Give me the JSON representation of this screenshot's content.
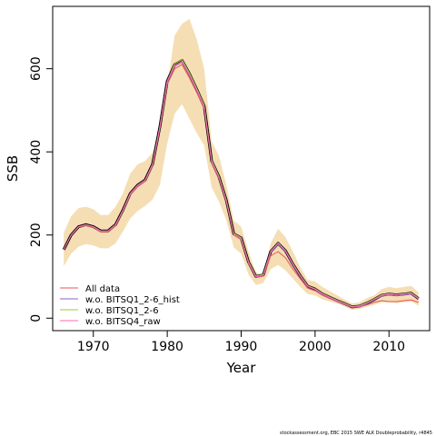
{
  "chart_data": {
    "type": "line",
    "xlabel": "Year",
    "ylabel": "SSB",
    "xlim": [
      1964.5,
      2015.5
    ],
    "ylim": [
      -30,
      750
    ],
    "x_ticks": [
      1970,
      1980,
      1990,
      2000,
      2010
    ],
    "y_ticks": [
      0,
      200,
      400,
      600
    ],
    "legend_position": "bottom-left",
    "x": [
      1966,
      1967,
      1968,
      1969,
      1970,
      1971,
      1972,
      1973,
      1974,
      1975,
      1976,
      1977,
      1978,
      1979,
      1980,
      1981,
      1982,
      1983,
      1984,
      1985,
      1986,
      1987,
      1988,
      1989,
      1990,
      1991,
      1992,
      1993,
      1994,
      1995,
      1996,
      1997,
      1998,
      1999,
      2000,
      2001,
      2002,
      2003,
      2004,
      2005,
      2006,
      2007,
      2008,
      2009,
      2010,
      2011,
      2012,
      2013,
      2014
    ],
    "band": {
      "color": "#f5deb3",
      "lower": [
        125,
        155,
        172,
        178,
        175,
        168,
        168,
        180,
        208,
        240,
        258,
        270,
        285,
        320,
        420,
        492,
        515,
        480,
        445,
        415,
        315,
        280,
        235,
        170,
        155,
        105,
        80,
        85,
        118,
        128,
        115,
        95,
        75,
        58,
        55,
        45,
        40,
        35,
        28,
        20,
        22,
        28,
        32,
        38,
        38,
        36,
        38,
        40,
        30
      ],
      "upper": [
        205,
        245,
        265,
        268,
        262,
        248,
        248,
        268,
        300,
        348,
        370,
        378,
        398,
        440,
        560,
        680,
        708,
        720,
        670,
        600,
        425,
        390,
        320,
        235,
        220,
        160,
        110,
        105,
        180,
        215,
        195,
        160,
        122,
        92,
        88,
        75,
        65,
        55,
        45,
        35,
        38,
        48,
        55,
        70,
        75,
        72,
        75,
        78,
        62
      ]
    },
    "series": [
      {
        "name": "",
        "color": "#000000",
        "values": [
          165,
          200,
          220,
          225,
          220,
          210,
          210,
          225,
          260,
          300,
          320,
          332,
          370,
          460,
          570,
          610,
          620,
          588,
          550,
          510,
          378,
          340,
          283,
          203,
          193,
          135,
          100,
          104,
          160,
          180,
          162,
          130,
          102,
          77,
          70,
          58,
          50,
          42,
          35,
          27,
          29,
          36,
          45,
          55,
          58,
          56,
          58,
          60,
          47
        ]
      },
      {
        "name": "All data",
        "color": "#e6555d",
        "values": [
          165,
          199,
          219,
          223,
          218,
          207,
          208,
          222,
          257,
          296,
          316,
          329,
          366,
          455,
          562,
          600,
          610,
          578,
          542,
          503,
          373,
          336,
          279,
          200,
          189,
          132,
          98,
          101,
          150,
          160,
          145,
          118,
          95,
          72,
          66,
          55,
          47,
          40,
          33,
          26,
          27,
          32,
          38,
          42,
          40,
          40,
          42,
          44,
          38
        ]
      },
      {
        "name": "w.o. BITSQ1_2-6_hist",
        "color": "#8b5fbf",
        "values": [
          165,
          200,
          220,
          224,
          219,
          209,
          209,
          224,
          259,
          298,
          318,
          331,
          368,
          458,
          566,
          606,
          616,
          584,
          547,
          507,
          376,
          338,
          281,
          202,
          191,
          134,
          99,
          103,
          158,
          178,
          160,
          128,
          100,
          76,
          69,
          57,
          49,
          41,
          34,
          27,
          28,
          35,
          44,
          53,
          56,
          54,
          56,
          58,
          46
        ]
      },
      {
        "name": "w.o. BITSQ1_2-6",
        "color": "#9acd32",
        "values": [
          165,
          200,
          220,
          225,
          220,
          210,
          210,
          225,
          260,
          300,
          320,
          332,
          370,
          460,
          570,
          612,
          622,
          590,
          552,
          512,
          380,
          341,
          284,
          204,
          194,
          136,
          101,
          105,
          161,
          181,
          163,
          131,
          103,
          78,
          71,
          59,
          51,
          43,
          36,
          28,
          30,
          37,
          46,
          56,
          59,
          57,
          59,
          61,
          48
        ]
      },
      {
        "name": "w.o. BITSQ4_raw",
        "color": "#ff69b4",
        "values": [
          165,
          200,
          220,
          225,
          220,
          210,
          210,
          225,
          260,
          300,
          320,
          332,
          370,
          460,
          570,
          608,
          618,
          586,
          549,
          509,
          377,
          339,
          282,
          202,
          192,
          134,
          100,
          104,
          160,
          180,
          162,
          130,
          102,
          77,
          70,
          58,
          50,
          42,
          35,
          27,
          29,
          36,
          45,
          55,
          58,
          56,
          58,
          60,
          47
        ]
      }
    ],
    "legend": [
      "All data",
      "w.o. BITSQ1_2-6_hist",
      "w.o. BITSQ1_2-6",
      "w.o. BITSQ4_raw"
    ]
  },
  "footer_text": "stockassessment.org, EBC 2015 SWE ALK Doubleprobability, r4845"
}
